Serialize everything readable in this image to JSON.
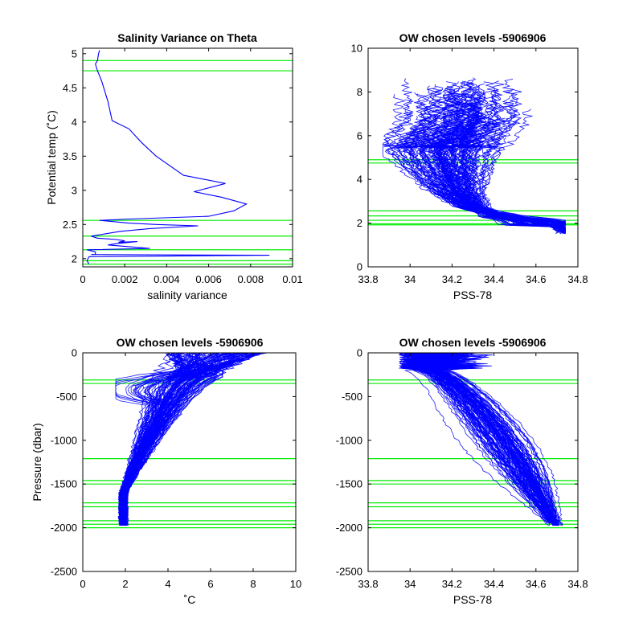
{
  "chart_data": [
    {
      "type": "line",
      "title": "Salinity Variance on Theta",
      "xlabel": "salinity variance",
      "ylabel": "Potential temp (˚C)",
      "xlim": [
        0,
        0.01
      ],
      "ylim": [
        1.88,
        5.08
      ],
      "xticks": [
        0,
        0.002,
        0.004,
        0.006,
        0.008,
        0.01
      ],
      "xtick_labels": [
        "0",
        "0.002",
        "0.004",
        "0.006",
        "0.008",
        "0.01"
      ],
      "yticks": [
        2,
        2.5,
        3,
        3.5,
        4,
        4.5,
        5
      ],
      "ytick_labels": [
        "2",
        "2.5",
        "3",
        "3.5",
        "4",
        "4.5",
        "5"
      ],
      "grid": false,
      "line_color": "#0000ff",
      "hline_color": "#00ee00",
      "hlines": [
        4.9,
        4.75,
        2.56,
        2.33,
        2.13,
        1.97,
        1.92
      ],
      "series": [
        {
          "x": [
            0.0008,
            0.00075,
            0.0007,
            0.0006,
            0.0007,
            0.0009,
            0.0012,
            0.0014,
            0.0022,
            0.0028,
            0.0035,
            0.0048,
            0.0068,
            0.0053,
            0.0066,
            0.0078,
            0.0072,
            0.006,
            0.0022,
            0.0008,
            0.0022,
            0.0035,
            0.0055,
            0.0032,
            0.0018,
            0.0004,
            0.0007,
            0.0016,
            0.002,
            0.0017,
            0.0026,
            0.0016,
            0.0012,
            0.0032,
            0.0002,
            0.0006,
            0.0006,
            0.0004,
            0.0089,
            0.0003,
            0.0002,
            0.0003
          ],
          "y": [
            5.05,
            5.0,
            4.9,
            4.85,
            4.75,
            4.6,
            4.3,
            4.02,
            3.9,
            3.7,
            3.5,
            3.22,
            3.1,
            2.98,
            2.9,
            2.8,
            2.7,
            2.62,
            2.58,
            2.56,
            2.52,
            2.5,
            2.48,
            2.44,
            2.4,
            2.33,
            2.3,
            2.28,
            2.26,
            2.24,
            2.25,
            2.22,
            2.2,
            2.15,
            2.13,
            2.1,
            2.06,
            2.06,
            2.05,
            2.03,
            1.97,
            1.92
          ]
        }
      ]
    },
    {
      "type": "line",
      "title": "OW chosen levels -5906906",
      "xlabel": "PSS-78",
      "ylabel": "",
      "xlim": [
        33.8,
        34.8
      ],
      "ylim": [
        0,
        10
      ],
      "xticks": [
        33.8,
        34,
        34.2,
        34.4,
        34.6,
        34.8
      ],
      "xtick_labels": [
        "33.8",
        "34",
        "34.2",
        "34.4",
        "34.6",
        "34.8"
      ],
      "yticks": [
        0,
        2,
        4,
        6,
        8,
        10
      ],
      "ytick_labels": [
        "0",
        "2",
        "4",
        "6",
        "8",
        "10"
      ],
      "grid": false,
      "line_color": "#0000ff",
      "hline_color": "#00ee00",
      "hlines": [
        4.9,
        4.75,
        2.56,
        2.33,
        2.13,
        1.97,
        1.92
      ],
      "profile_count": 120
    },
    {
      "type": "line",
      "title": "OW chosen levels -5906906",
      "xlabel": "˚C",
      "ylabel": "Pressure (dbar)",
      "xlim": [
        0,
        10
      ],
      "ylim": [
        -2500,
        0
      ],
      "xticks": [
        0,
        2,
        4,
        6,
        8,
        10
      ],
      "xtick_labels": [
        "0",
        "2",
        "4",
        "6",
        "8",
        "10"
      ],
      "yticks": [
        -2500,
        -2000,
        -1500,
        -1000,
        -500,
        0
      ],
      "ytick_labels": [
        "-2500",
        "-2000",
        "-1500",
        "-1000",
        "-500",
        "0"
      ],
      "grid": false,
      "line_color": "#0000ff",
      "hline_color": "#00ee00",
      "hlines": [
        -310,
        -350,
        -1210,
        -1460,
        -1500,
        -1715,
        -1760,
        -1920,
        -1960,
        -2000
      ],
      "profile_count": 120
    },
    {
      "type": "line",
      "title": "OW chosen levels -5906906",
      "xlabel": "PSS-78",
      "ylabel": "",
      "xlim": [
        33.8,
        34.8
      ],
      "ylim": [
        -2500,
        0
      ],
      "xticks": [
        33.8,
        34,
        34.2,
        34.4,
        34.6,
        34.8
      ],
      "xtick_labels": [
        "33.8",
        "34",
        "34.2",
        "34.4",
        "34.6",
        "34.8"
      ],
      "yticks": [
        -2500,
        -2000,
        -1500,
        -1000,
        -500,
        0
      ],
      "ytick_labels": [
        "-2500",
        "-2000",
        "-1500",
        "-1000",
        "-500",
        "0"
      ],
      "grid": false,
      "line_color": "#0000ff",
      "hline_color": "#00ee00",
      "hlines": [
        -310,
        -350,
        -1210,
        -1460,
        -1500,
        -1715,
        -1760,
        -1920,
        -1960,
        -2000
      ],
      "profile_count": 120
    }
  ]
}
